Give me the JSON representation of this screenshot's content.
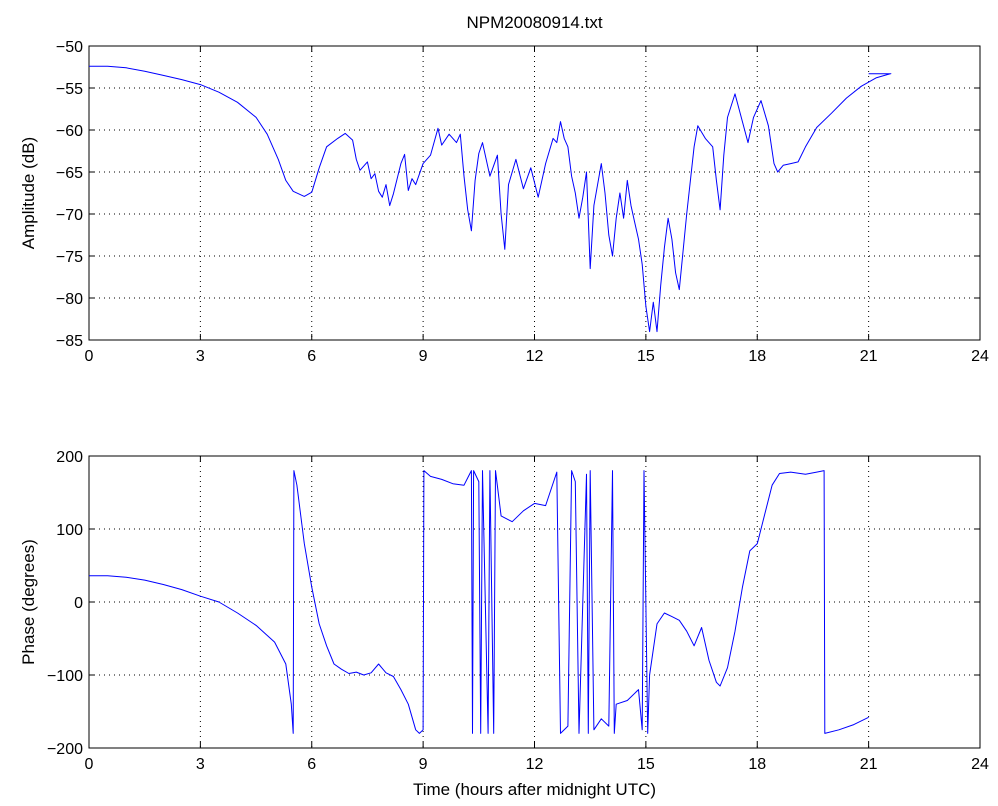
{
  "colors": {
    "series": "#0000ff",
    "axes": "#000000",
    "background": "#ffffff"
  },
  "chart_data": [
    {
      "type": "line",
      "title": "NPM20080914.txt",
      "xlabel": "",
      "ylabel": "Amplitude (dB)",
      "xlim": [
        0,
        24
      ],
      "ylim": [
        -85,
        -50
      ],
      "xticks": [
        "0",
        "3",
        "6",
        "9",
        "12",
        "15",
        "18",
        "21",
        "24"
      ],
      "yticks": [
        "-85",
        "-80",
        "-75",
        "-70",
        "-65",
        "-60",
        "-55",
        "-50"
      ],
      "grid": true,
      "series": [
        {
          "values": [
            [
              0,
              -52.4
            ],
            [
              0.5,
              -52.4
            ],
            [
              1.0,
              -52.6
            ],
            [
              1.5,
              -53.0
            ],
            [
              2.0,
              -53.5
            ],
            [
              2.5,
              -54.0
            ],
            [
              3.0,
              -54.6
            ],
            [
              3.5,
              -55.5
            ],
            [
              4.0,
              -56.7
            ],
            [
              4.5,
              -58.5
            ],
            [
              4.8,
              -60.5
            ],
            [
              5.1,
              -63.5
            ],
            [
              5.3,
              -66.0
            ],
            [
              5.5,
              -67.3
            ],
            [
              5.8,
              -67.9
            ],
            [
              6.0,
              -67.4
            ],
            [
              6.2,
              -64.5
            ],
            [
              6.4,
              -62.0
            ],
            [
              6.7,
              -61.0
            ],
            [
              6.9,
              -60.4
            ],
            [
              7.1,
              -61.2
            ],
            [
              7.2,
              -63.5
            ],
            [
              7.3,
              -64.8
            ],
            [
              7.5,
              -63.8
            ],
            [
              7.6,
              -65.8
            ],
            [
              7.7,
              -65.2
            ],
            [
              7.8,
              -67.3
            ],
            [
              7.9,
              -68.0
            ],
            [
              8.0,
              -66.5
            ],
            [
              8.1,
              -69.0
            ],
            [
              8.2,
              -67.6
            ],
            [
              8.4,
              -64.0
            ],
            [
              8.5,
              -62.9
            ],
            [
              8.6,
              -67.2
            ],
            [
              8.7,
              -65.8
            ],
            [
              8.8,
              -66.5
            ],
            [
              9.0,
              -64.0
            ],
            [
              9.2,
              -63.0
            ],
            [
              9.4,
              -59.8
            ],
            [
              9.5,
              -61.8
            ],
            [
              9.7,
              -60.5
            ],
            [
              9.9,
              -61.5
            ],
            [
              10.0,
              -60.5
            ],
            [
              10.1,
              -65.5
            ],
            [
              10.2,
              -69.5
            ],
            [
              10.3,
              -72.0
            ],
            [
              10.4,
              -66.0
            ],
            [
              10.5,
              -62.8
            ],
            [
              10.6,
              -61.5
            ],
            [
              10.8,
              -65.5
            ],
            [
              11.0,
              -63.0
            ],
            [
              11.1,
              -70.0
            ],
            [
              11.2,
              -74.2
            ],
            [
              11.3,
              -66.5
            ],
            [
              11.5,
              -63.5
            ],
            [
              11.7,
              -67.0
            ],
            [
              11.9,
              -64.5
            ],
            [
              12.1,
              -68.0
            ],
            [
              12.3,
              -64.0
            ],
            [
              12.5,
              -61.0
            ],
            [
              12.6,
              -61.5
            ],
            [
              12.7,
              -59.0
            ],
            [
              12.8,
              -61.0
            ],
            [
              12.9,
              -62.0
            ],
            [
              13.0,
              -65.5
            ],
            [
              13.1,
              -67.5
            ],
            [
              13.2,
              -70.5
            ],
            [
              13.3,
              -68.0
            ],
            [
              13.4,
              -65.0
            ],
            [
              13.5,
              -76.5
            ],
            [
              13.6,
              -69.0
            ],
            [
              13.8,
              -64.0
            ],
            [
              13.9,
              -67.5
            ],
            [
              14.0,
              -72.5
            ],
            [
              14.1,
              -75.0
            ],
            [
              14.2,
              -70.5
            ],
            [
              14.3,
              -67.5
            ],
            [
              14.4,
              -70.5
            ],
            [
              14.5,
              -66.0
            ],
            [
              14.6,
              -69.0
            ],
            [
              14.7,
              -71.0
            ],
            [
              14.8,
              -73.0
            ],
            [
              14.9,
              -76.0
            ],
            [
              15.0,
              -81.0
            ],
            [
              15.1,
              -84.0
            ],
            [
              15.2,
              -80.5
            ],
            [
              15.3,
              -84.0
            ],
            [
              15.4,
              -78.5
            ],
            [
              15.5,
              -74.0
            ],
            [
              15.6,
              -70.5
            ],
            [
              15.7,
              -73.0
            ],
            [
              15.8,
              -77.0
            ],
            [
              15.9,
              -79.0
            ],
            [
              16.0,
              -74.5
            ],
            [
              16.1,
              -70.0
            ],
            [
              16.2,
              -66.0
            ],
            [
              16.3,
              -62.0
            ],
            [
              16.4,
              -59.5
            ],
            [
              16.6,
              -61.0
            ],
            [
              16.8,
              -62.0
            ],
            [
              16.9,
              -66.0
            ],
            [
              17.0,
              -69.5
            ],
            [
              17.1,
              -63.0
            ],
            [
              17.2,
              -58.5
            ],
            [
              17.4,
              -55.7
            ],
            [
              17.6,
              -59.0
            ],
            [
              17.75,
              -61.5
            ],
            [
              17.9,
              -58.5
            ],
            [
              18.1,
              -56.5
            ],
            [
              18.3,
              -59.5
            ],
            [
              18.45,
              -64.0
            ],
            [
              18.55,
              -65.0
            ],
            [
              18.7,
              -64.2
            ],
            [
              18.9,
              -64.0
            ],
            [
              19.1,
              -63.8
            ],
            [
              19.3,
              -62.0
            ],
            [
              19.6,
              -59.7
            ],
            [
              20.0,
              -58.0
            ],
            [
              20.4,
              -56.2
            ],
            [
              20.8,
              -54.8
            ],
            [
              21.2,
              -53.8
            ],
            [
              21.5,
              -53.4
            ],
            [
              21.6,
              -53.3
            ],
            [
              21.0,
              -53.3
            ]
          ]
        }
      ]
    },
    {
      "type": "line",
      "title": "",
      "xlabel": "Time (hours after midnight UTC)",
      "ylabel": "Phase (degrees)",
      "xlim": [
        0,
        24
      ],
      "ylim": [
        -200,
        200
      ],
      "xticks": [
        "0",
        "3",
        "6",
        "9",
        "12",
        "15",
        "18",
        "21",
        "24"
      ],
      "yticks": [
        "-200",
        "-100",
        "0",
        "100",
        "200"
      ],
      "grid": true,
      "series": [
        {
          "values": [
            [
              0,
              36
            ],
            [
              0.5,
              36
            ],
            [
              1.0,
              34
            ],
            [
              1.5,
              30
            ],
            [
              2.0,
              24
            ],
            [
              2.5,
              17
            ],
            [
              3.0,
              8
            ],
            [
              3.5,
              0
            ],
            [
              4.0,
              -15
            ],
            [
              4.5,
              -32
            ],
            [
              5.0,
              -55
            ],
            [
              5.3,
              -85
            ],
            [
              5.45,
              -140
            ],
            [
              5.5,
              -180
            ],
            [
              5.52,
              180
            ],
            [
              5.6,
              160
            ],
            [
              5.8,
              80
            ],
            [
              6.0,
              20
            ],
            [
              6.2,
              -30
            ],
            [
              6.4,
              -60
            ],
            [
              6.6,
              -85
            ],
            [
              6.8,
              -92
            ],
            [
              7.0,
              -98
            ],
            [
              7.2,
              -96
            ],
            [
              7.4,
              -100
            ],
            [
              7.6,
              -97
            ],
            [
              7.8,
              -85
            ],
            [
              8.0,
              -97
            ],
            [
              8.2,
              -102
            ],
            [
              8.4,
              -120
            ],
            [
              8.6,
              -140
            ],
            [
              8.8,
              -175
            ],
            [
              8.9,
              -180
            ],
            [
              9.0,
              -175
            ],
            [
              9.02,
              180
            ],
            [
              9.2,
              172
            ],
            [
              9.5,
              168
            ],
            [
              9.8,
              162
            ],
            [
              10.1,
              160
            ],
            [
              10.2,
              170
            ],
            [
              10.3,
              180
            ],
            [
              10.33,
              -180
            ],
            [
              10.36,
              180
            ],
            [
              10.5,
              165
            ],
            [
              10.55,
              -180
            ],
            [
              10.6,
              180
            ],
            [
              10.75,
              -180
            ],
            [
              10.8,
              180
            ],
            [
              10.9,
              -180
            ],
            [
              10.95,
              180
            ],
            [
              11.1,
              118
            ],
            [
              11.4,
              110
            ],
            [
              11.7,
              125
            ],
            [
              12.0,
              135
            ],
            [
              12.3,
              132
            ],
            [
              12.6,
              178
            ],
            [
              12.7,
              -180
            ],
            [
              12.9,
              -170
            ],
            [
              13.0,
              180
            ],
            [
              13.1,
              165
            ],
            [
              13.2,
              -180
            ],
            [
              13.4,
              175
            ],
            [
              13.45,
              -180
            ],
            [
              13.5,
              180
            ],
            [
              13.6,
              -175
            ],
            [
              13.8,
              -160
            ],
            [
              14.0,
              -170
            ],
            [
              14.1,
              180
            ],
            [
              14.15,
              -180
            ],
            [
              14.2,
              -140
            ],
            [
              14.5,
              -135
            ],
            [
              14.8,
              -120
            ],
            [
              14.9,
              -175
            ],
            [
              14.95,
              180
            ],
            [
              15.05,
              -180
            ],
            [
              15.1,
              -100
            ],
            [
              15.3,
              -30
            ],
            [
              15.5,
              -15
            ],
            [
              15.7,
              -20
            ],
            [
              15.9,
              -25
            ],
            [
              16.1,
              -40
            ],
            [
              16.3,
              -60
            ],
            [
              16.5,
              -35
            ],
            [
              16.7,
              -80
            ],
            [
              16.9,
              -110
            ],
            [
              17.0,
              -115
            ],
            [
              17.2,
              -90
            ],
            [
              17.4,
              -40
            ],
            [
              17.6,
              20
            ],
            [
              17.8,
              70
            ],
            [
              18.0,
              80
            ],
            [
              18.2,
              120
            ],
            [
              18.4,
              160
            ],
            [
              18.6,
              176
            ],
            [
              18.9,
              178
            ],
            [
              19.3,
              175
            ],
            [
              19.6,
              178
            ],
            [
              19.8,
              180
            ],
            [
              19.82,
              -180
            ],
            [
              20.2,
              -175
            ],
            [
              20.6,
              -168
            ],
            [
              21.0,
              -158
            ]
          ]
        }
      ]
    }
  ]
}
